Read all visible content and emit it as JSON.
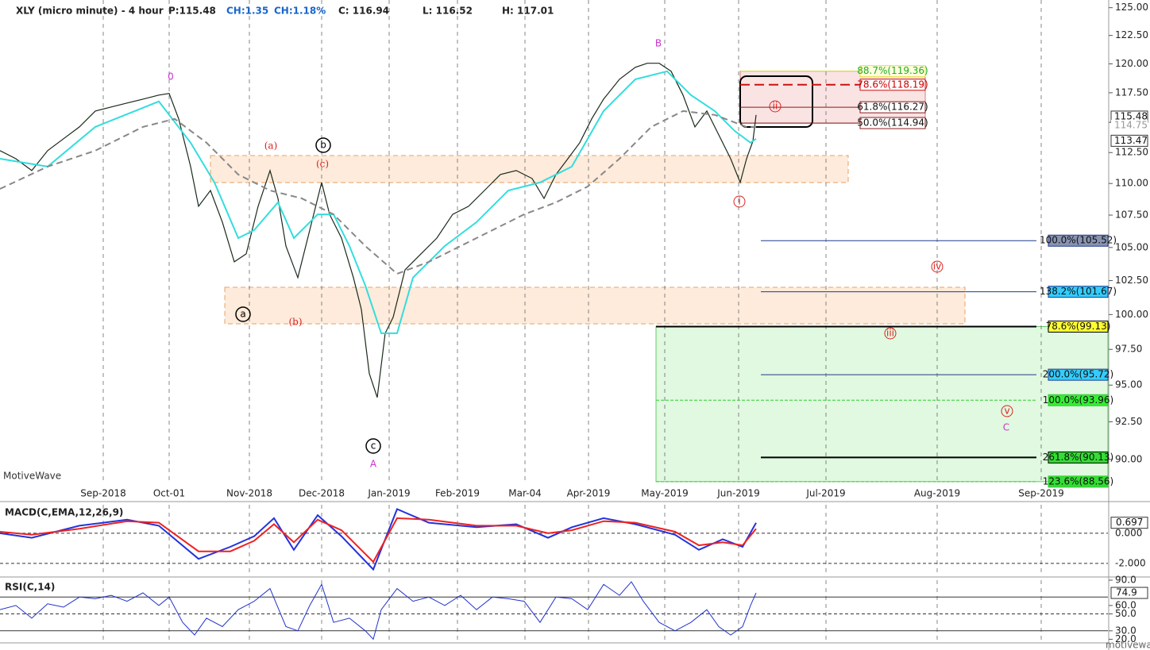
{
  "header": {
    "symbol": "XLY (micro minute) - 4 hour",
    "price": "P:115.48",
    "change": "CH:1.35",
    "change_pct": "CH:1.18%",
    "close": "C: 116.94",
    "low": "L: 116.52",
    "high": "H: 117.01"
  },
  "watermark": "MotiveWave",
  "footer": "motivewave.com",
  "chart_data": [
    {
      "type": "line",
      "log_scale": true,
      "grid": true,
      "xlim": [
        0,
        1395
      ],
      "ylim": [
        88.4,
        125.7
      ],
      "xticks": [
        {
          "value": 130,
          "label": "Sep-2018"
        },
        {
          "value": 213,
          "label": "Oct-01"
        },
        {
          "value": 314,
          "label": "Nov-2018"
        },
        {
          "value": 405,
          "label": "Dec-2018"
        },
        {
          "value": 490,
          "label": "Jan-2019"
        },
        {
          "value": 576,
          "label": "Feb-2019"
        },
        {
          "value": 661,
          "label": "Mar-04"
        },
        {
          "value": 741,
          "label": "Apr-2019"
        },
        {
          "value": 837,
          "label": "May-2019"
        },
        {
          "value": 930,
          "label": "Jun-2019"
        },
        {
          "value": 1040,
          "label": "Jul-2019"
        },
        {
          "value": 1180,
          "label": "Aug-2019"
        },
        {
          "value": 1311,
          "label": "Sep-2019"
        }
      ],
      "yticks": [
        {
          "value": 125,
          "label": "125.00"
        },
        {
          "value": 122.5,
          "label": "122.50"
        },
        {
          "value": 120,
          "label": "120.00"
        },
        {
          "value": 117.5,
          "label": "117.50"
        },
        {
          "value": 115,
          "label": "115.00"
        },
        {
          "value": 112.5,
          "label": "112.50"
        },
        {
          "value": 110,
          "label": "110.00"
        },
        {
          "value": 107.5,
          "label": "107.50"
        },
        {
          "value": 105,
          "label": "105.00"
        },
        {
          "value": 102.5,
          "label": "102.50"
        },
        {
          "value": 100,
          "label": "100.00"
        },
        {
          "value": 97.5,
          "label": "97.50"
        },
        {
          "value": 95,
          "label": "95.00"
        },
        {
          "value": 92.5,
          "label": "92.50"
        },
        {
          "value": 90,
          "label": "90.00"
        }
      ],
      "series": [
        {
          "color": "#1a2a1a",
          "x": [
            0,
            20,
            40,
            60,
            80,
            100,
            120,
            140,
            160,
            180,
            200,
            213,
            225,
            240,
            250,
            265,
            280,
            295,
            310,
            325,
            340,
            350,
            360,
            375,
            390,
            405,
            415,
            430,
            445,
            455,
            465,
            475,
            485,
            495,
            510,
            530,
            550,
            570,
            590,
            610,
            630,
            650,
            670,
            685,
            700,
            715,
            730,
            745,
            760,
            780,
            800,
            815,
            830,
            845,
            860,
            875,
            890,
            905,
            920,
            932,
            940,
            948,
            952
          ],
          "values": [
            112.66,
            112.0,
            111.04,
            112.66,
            113.64,
            114.62,
            115.95,
            116.29,
            116.63,
            116.96,
            117.3,
            117.44,
            115.29,
            111.36,
            108.19,
            109.44,
            106.95,
            103.91,
            104.51,
            108.19,
            111.04,
            108.81,
            105.11,
            102.72,
            106.33,
            110.08,
            107.56,
            105.72,
            102.72,
            100.38,
            95.8,
            94.15,
            98.65,
            99.8,
            103.31,
            104.51,
            105.72,
            107.56,
            108.19,
            109.44,
            110.72,
            111.04,
            110.4,
            108.81,
            110.72,
            112.0,
            113.31,
            115.29,
            116.96,
            118.66,
            119.7,
            120.05,
            120.05,
            119.35,
            117.3,
            114.62,
            115.95,
            113.96,
            112.0,
            110.08,
            112.0,
            113.44,
            115.62
          ]
        },
        {
          "color": "#33dddd",
          "x": [
            0,
            60,
            120,
            200,
            240,
            270,
            300,
            320,
            350,
            370,
            400,
            420,
            440,
            460,
            480,
            500,
            520,
            560,
            600,
            640,
            680,
            720,
            760,
            800,
            840,
            870,
            900,
            925,
            945,
            952
          ],
          "values": [
            112.0,
            111.36,
            114.62,
            116.76,
            113.31,
            110.08,
            105.72,
            106.33,
            108.5,
            105.72,
            107.56,
            107.56,
            105.11,
            102.13,
            98.65,
            98.65,
            102.72,
            105.11,
            106.95,
            109.44,
            110.08,
            111.36,
            115.95,
            118.66,
            119.35,
            117.3,
            115.95,
            114.29,
            113.31,
            113.64
          ]
        },
        {
          "color": "#888888",
          "dashed": true,
          "x": [
            0,
            60,
            120,
            180,
            220,
            260,
            300,
            340,
            380,
            420,
            460,
            500,
            540,
            600,
            660,
            700,
            740,
            780,
            820,
            860,
            900,
            940,
            952
          ],
          "values": [
            109.57,
            111.36,
            112.66,
            114.62,
            115.29,
            113.31,
            110.72,
            109.44,
            108.81,
            107.56,
            105.11,
            103.01,
            103.91,
            105.72,
            107.56,
            108.5,
            109.76,
            112.0,
            114.62,
            115.95,
            115.62,
            114.62,
            114.62
          ]
        }
      ],
      "price_labels": [
        {
          "value": 115.48,
          "label": "115.48"
        },
        {
          "value": 114.75,
          "label": "114.75"
        },
        {
          "value": 113.47,
          "label": "113.47"
        }
      ],
      "fib_levels": [
        {
          "label": "88.7%(119.36)",
          "value": 119.36,
          "color": "#e0e040",
          "label_color": "#ffffe0"
        },
        {
          "label": "78.6%(118.19)",
          "value": 118.19,
          "color": "#cc1111",
          "label_color": "#ffffff"
        },
        {
          "label": "61.8%(116.27)",
          "value": 116.27,
          "color": "#8b1a1a",
          "label_color": "#ffffff"
        },
        {
          "label": "50.0%(114.94)",
          "value": 114.94,
          "color": "#8b1a1a",
          "label_color": "#ffffff"
        },
        {
          "label": "100.0%(105.52)",
          "value": 105.52,
          "color": "#1f3a8a",
          "label_color": "#8893b3"
        },
        {
          "label": "138.2%(101.67)",
          "value": 101.67,
          "color": "#1f3a8a",
          "label_color": "#33ccff"
        },
        {
          "label": "78.6%(99.13)",
          "value": 99.13,
          "color": "#000000",
          "label_color": "#ffff33"
        },
        {
          "label": "200.0%(95.72)",
          "value": 95.72,
          "color": "#1f3a8a",
          "label_color": "#33ccff"
        },
        {
          "label": "100.0%(93.96)",
          "value": 93.96,
          "color": "#33cc33",
          "label_color": "#33ee33"
        },
        {
          "label": "261.8%(90.13)",
          "value": 90.13,
          "color": "#000000",
          "label_color": "#33dd33"
        },
        {
          "label": "123.6%(88.56)",
          "value": 88.56,
          "color": "#33cc33",
          "label_color": "#33dd33"
        }
      ],
      "wave_labels": [
        {
          "text": "0",
          "color": "#cc33cc"
        },
        {
          "text": "B",
          "color": "#cc33cc"
        },
        {
          "text": "A",
          "color": "#cc33cc"
        },
        {
          "text": "C",
          "color": "#cc33cc"
        },
        {
          "text": "(a)",
          "color": "#dd2222"
        },
        {
          "text": "(b)",
          "color": "#dd2222"
        },
        {
          "text": "(c)",
          "color": "#dd2222"
        },
        {
          "text": "a",
          "color": "#000000"
        },
        {
          "text": "b",
          "color": "#000000"
        },
        {
          "text": "c",
          "color": "#000000"
        },
        {
          "text": "ii",
          "color": "#dd2222"
        },
        {
          "text": "i",
          "color": "#dd2222"
        },
        {
          "text": "iii",
          "color": "#dd2222"
        },
        {
          "text": "iv",
          "color": "#dd2222"
        },
        {
          "text": "v",
          "color": "#dd2222"
        }
      ]
    },
    {
      "type": "line",
      "title": "MACD(C,EMA,12,26,9)",
      "xlim": [
        0,
        1395
      ],
      "ylim": [
        -2.74,
        1.89
      ],
      "yticks": [
        {
          "value": 0,
          "label": "0.000"
        },
        {
          "value": -2,
          "label": "-2.000"
        }
      ],
      "last_label": {
        "value": 0.697,
        "label": "0.697"
      },
      "series": [
        {
          "color": "#2233dd",
          "x": [
            0,
            40,
            100,
            160,
            200,
            250,
            290,
            320,
            345,
            370,
            400,
            430,
            470,
            500,
            540,
            600,
            650,
            690,
            720,
            760,
            800,
            850,
            880,
            910,
            935,
            952
          ],
          "values": [
            0.0,
            -0.3,
            0.5,
            0.9,
            0.5,
            -1.7,
            -0.9,
            -0.2,
            1.0,
            -1.1,
            1.2,
            -0.2,
            -2.4,
            1.6,
            0.7,
            0.4,
            0.6,
            -0.3,
            0.4,
            1.0,
            0.6,
            -0.1,
            -1.1,
            -0.4,
            -0.9,
            0.697
          ]
        },
        {
          "color": "#ee2222",
          "x": [
            0,
            40,
            100,
            160,
            200,
            250,
            290,
            320,
            345,
            370,
            400,
            430,
            470,
            500,
            540,
            600,
            650,
            690,
            720,
            760,
            800,
            850,
            880,
            910,
            935,
            952
          ],
          "values": [
            0.1,
            -0.1,
            0.3,
            0.8,
            0.7,
            -1.2,
            -1.2,
            -0.5,
            0.6,
            -0.6,
            0.9,
            0.2,
            -1.9,
            1.0,
            0.9,
            0.5,
            0.5,
            0.0,
            0.2,
            0.8,
            0.7,
            0.1,
            -0.8,
            -0.6,
            -0.8,
            0.3
          ]
        }
      ]
    },
    {
      "type": "line",
      "title": "RSI(C,14)",
      "xlim": [
        0,
        1395
      ],
      "ylim": [
        17.6,
        90
      ],
      "yticks": [
        {
          "value": 90,
          "label": "90.0"
        },
        {
          "value": 60,
          "label": "60.0"
        },
        {
          "value": 50,
          "label": "50.0"
        },
        {
          "value": 30,
          "label": "30.0"
        },
        {
          "value": 20,
          "label": "20.0"
        }
      ],
      "ref_lines": [
        70,
        50,
        30
      ],
      "last_label": {
        "value": 74.9,
        "label": "74.9"
      },
      "series": [
        {
          "color": "#2233cc",
          "x": [
            0,
            20,
            40,
            60,
            80,
            100,
            120,
            140,
            160,
            180,
            200,
            213,
            230,
            245,
            260,
            280,
            300,
            320,
            340,
            360,
            375,
            390,
            405,
            420,
            440,
            460,
            470,
            480,
            500,
            520,
            540,
            560,
            580,
            600,
            620,
            640,
            660,
            680,
            700,
            720,
            740,
            760,
            780,
            795,
            810,
            830,
            850,
            870,
            890,
            905,
            920,
            935,
            945,
            952
          ],
          "values": [
            55,
            60,
            45,
            62,
            58,
            70,
            68,
            72,
            65,
            75,
            60,
            70,
            40,
            25,
            45,
            35,
            55,
            65,
            80,
            35,
            30,
            60,
            85,
            40,
            45,
            30,
            20,
            55,
            80,
            65,
            70,
            60,
            72,
            55,
            70,
            68,
            65,
            40,
            70,
            68,
            55,
            85,
            72,
            88,
            65,
            40,
            30,
            40,
            55,
            35,
            25,
            35,
            60,
            74.9
          ]
        }
      ]
    }
  ]
}
